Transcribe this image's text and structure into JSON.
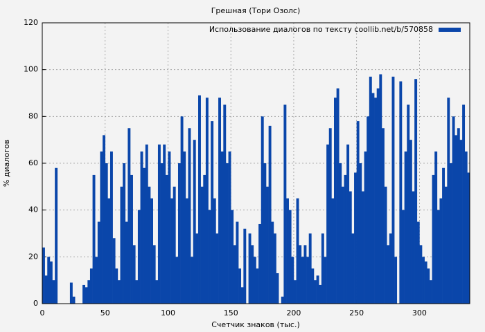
{
  "chart_data": {
    "type": "bar",
    "title": "Грешная (Тори Озолс)",
    "xlabel": "Счетчик знаков (тыс.)",
    "ylabel": "% диалогов",
    "legend": "upper right",
    "grid": true,
    "series": [
      {
        "name": "Использование диалогов по тексту coollib.net/b/570858",
        "color": "#0a46aa",
        "values": [
          24,
          12,
          20,
          18,
          10,
          58,
          0,
          0,
          0,
          0,
          0,
          9,
          3,
          0,
          0,
          0,
          8,
          7,
          10,
          15,
          55,
          20,
          35,
          65,
          72,
          60,
          45,
          65,
          28,
          15,
          10,
          50,
          60,
          35,
          75,
          55,
          25,
          10,
          40,
          65,
          58,
          68,
          50,
          45,
          25,
          10,
          68,
          60,
          68,
          55,
          65,
          45,
          50,
          20,
          60,
          80,
          65,
          45,
          75,
          20,
          70,
          30,
          89,
          50,
          55,
          88,
          40,
          78,
          45,
          30,
          88,
          65,
          85,
          60,
          65,
          40,
          25,
          35,
          15,
          7,
          32,
          0,
          30,
          25,
          20,
          15,
          34,
          80,
          60,
          50,
          76,
          35,
          30,
          13,
          0,
          3,
          85,
          45,
          40,
          20,
          10,
          45,
          25,
          20,
          25,
          20,
          30,
          15,
          10,
          12,
          8,
          30,
          20,
          68,
          75,
          45,
          88,
          92,
          60,
          50,
          55,
          68,
          48,
          30,
          56,
          78,
          60,
          48,
          65,
          80,
          97,
          90,
          88,
          92,
          98,
          75,
          50,
          25,
          30,
          97,
          20,
          0,
          95,
          40,
          65,
          85,
          70,
          48,
          96,
          35,
          25,
          20,
          18,
          15,
          10,
          55,
          65,
          40,
          45,
          58,
          50,
          88,
          60,
          80,
          72,
          75,
          70,
          85,
          65,
          56
        ]
      }
    ],
    "x": [
      0,
      2,
      4,
      6,
      8,
      10,
      12,
      14,
      16,
      18,
      20,
      22,
      24,
      26,
      28,
      30,
      32,
      34,
      36,
      38,
      40,
      42,
      44,
      46,
      48,
      50,
      52,
      54,
      56,
      58,
      60,
      62,
      64,
      66,
      68,
      70,
      72,
      74,
      76,
      78,
      80,
      82,
      84,
      86,
      88,
      90,
      92,
      94,
      96,
      98,
      100,
      102,
      104,
      106,
      108,
      110,
      112,
      114,
      116,
      118,
      120,
      122,
      124,
      126,
      128,
      130,
      132,
      134,
      136,
      138,
      140,
      142,
      144,
      146,
      148,
      150,
      152,
      154,
      156,
      158,
      160,
      162,
      164,
      166,
      168,
      170,
      172,
      174,
      176,
      178,
      180,
      182,
      184,
      186,
      188,
      190,
      192,
      194,
      196,
      198,
      200,
      202,
      204,
      206,
      208,
      210,
      212,
      214,
      216,
      218,
      220,
      222,
      224,
      226,
      228,
      230,
      232,
      234,
      236,
      238,
      240,
      242,
      244,
      246,
      248,
      250,
      252,
      254,
      256,
      258,
      260,
      262,
      264,
      266,
      268,
      270,
      272,
      274,
      276,
      278,
      280,
      282,
      284,
      286,
      288,
      290,
      292,
      294,
      296,
      298,
      300,
      302,
      304,
      306,
      308,
      310,
      312,
      314,
      316,
      318,
      320,
      322,
      324,
      326,
      328,
      330,
      332,
      334,
      336,
      338
    ],
    "xlim": [
      0,
      340
    ],
    "xticks": [
      0,
      50,
      100,
      150,
      200,
      250,
      300
    ],
    "ylim": [
      0,
      120
    ],
    "yticks": [
      0,
      20,
      40,
      60,
      80,
      100,
      120
    ]
  }
}
